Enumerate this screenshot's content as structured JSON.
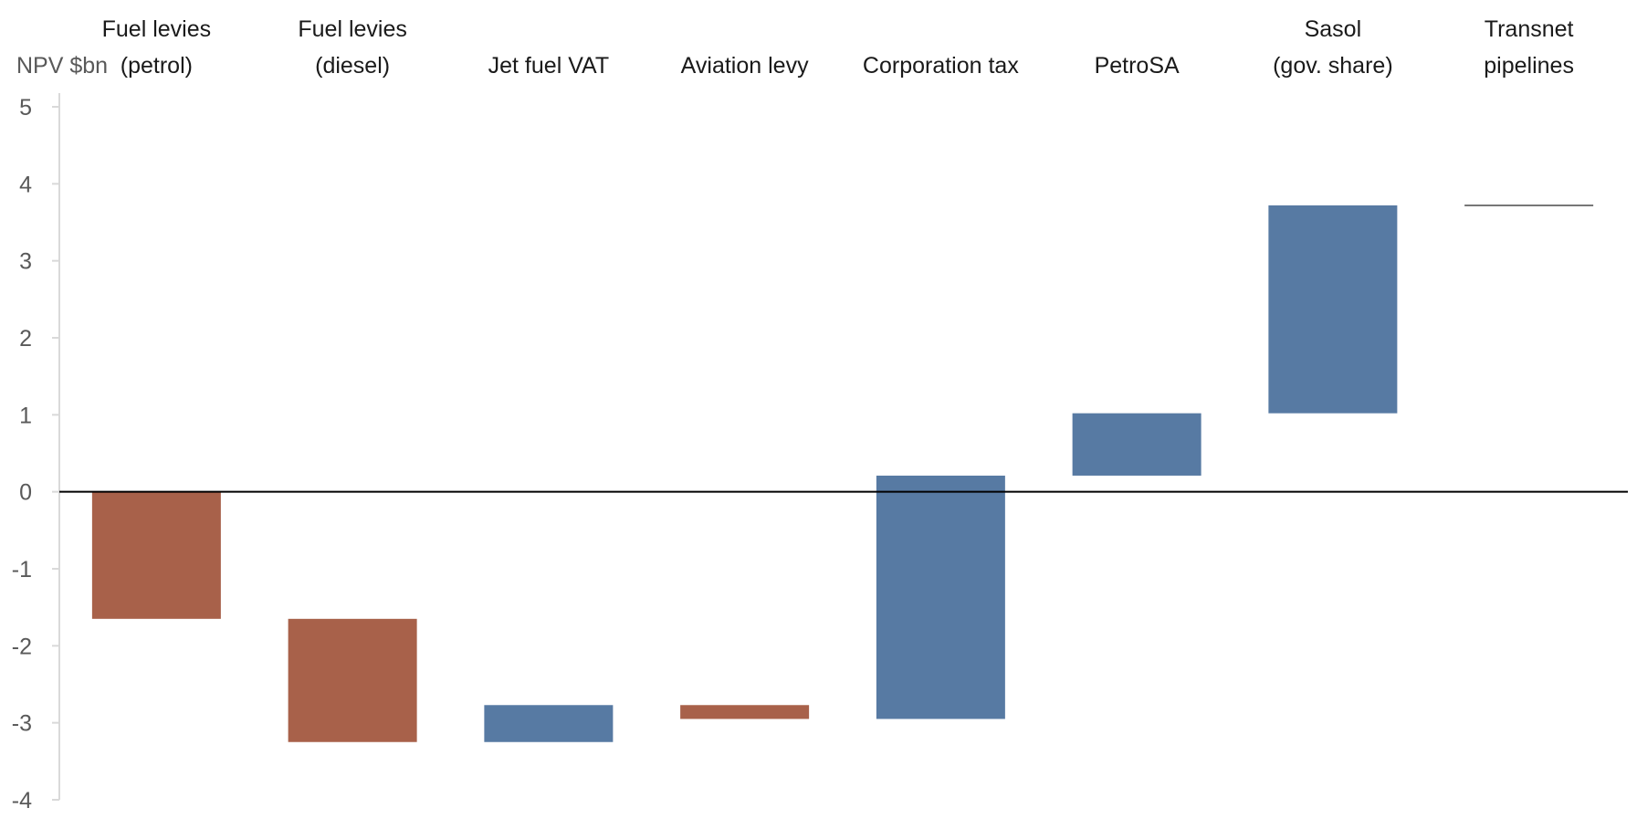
{
  "chart_data": {
    "type": "bar",
    "subtype": "waterfall",
    "ylabel": "NPV $bn",
    "ylim": [
      -4,
      5
    ],
    "yticks": [
      "5",
      "4",
      "3",
      "2",
      "1",
      "0",
      "-1",
      "-2",
      "-3",
      "-4"
    ],
    "ytick_values": [
      5,
      4,
      3,
      2,
      1,
      0,
      -1,
      -2,
      -3,
      -4
    ],
    "grid": false,
    "categories": [
      {
        "lines": [
          "Fuel levies",
          "(petrol)"
        ]
      },
      {
        "lines": [
          "Fuel levies",
          "(diesel)"
        ]
      },
      {
        "lines": [
          "Jet fuel VAT"
        ]
      },
      {
        "lines": [
          "Aviation levy"
        ]
      },
      {
        "lines": [
          "Corporation tax"
        ]
      },
      {
        "lines": [
          "PetroSA"
        ]
      },
      {
        "lines": [
          "Sasol",
          "(gov. share)"
        ]
      },
      {
        "lines": [
          "Transnet",
          "pipelines"
        ]
      }
    ],
    "bars": [
      {
        "start": 0.0,
        "end": -1.65,
        "color": "#a8614a"
      },
      {
        "start": -1.65,
        "end": -3.25,
        "color": "#a8614a"
      },
      {
        "start": -3.25,
        "end": -2.77,
        "color": "#577aa3"
      },
      {
        "start": -2.77,
        "end": -2.95,
        "color": "#a8614a"
      },
      {
        "start": -2.95,
        "end": 0.21,
        "color": "#577aa3"
      },
      {
        "start": 0.21,
        "end": 1.02,
        "color": "#577aa3"
      },
      {
        "start": 1.02,
        "end": 3.72,
        "color": "#577aa3"
      },
      {
        "start": 3.72,
        "end": 3.72,
        "color": "#777777"
      }
    ],
    "colors": {
      "decrease": "#a8614a",
      "increase": "#577aa3",
      "axis": "#d9d9d9",
      "zero_line": "#000000"
    }
  }
}
